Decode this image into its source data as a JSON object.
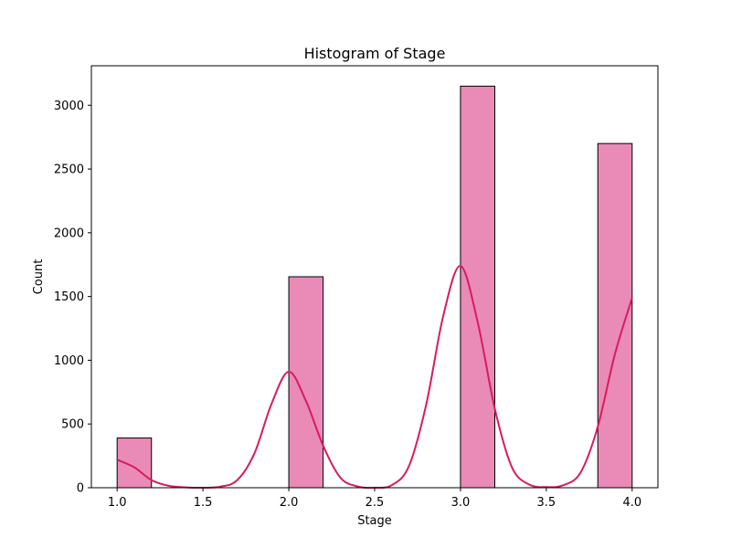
{
  "chart_data": {
    "type": "bar",
    "title": "Histogram of Stage",
    "xlabel": "Stage",
    "ylabel": "Count",
    "xlim": [
      0.85,
      4.15
    ],
    "ylim": [
      0,
      3310
    ],
    "x_ticks": [
      "1.0",
      "1.5",
      "2.0",
      "2.5",
      "3.0",
      "3.5",
      "4.0"
    ],
    "y_ticks": [
      "0",
      "500",
      "1000",
      "1500",
      "2000",
      "2500",
      "3000"
    ],
    "bar_color": "#e98bb6",
    "edge_color": "#000000",
    "kde_color": "#d81b60",
    "bins": [
      {
        "start": 1.0,
        "end": 1.2,
        "count": 390
      },
      {
        "start": 1.2,
        "end": 1.4,
        "count": 0
      },
      {
        "start": 1.4,
        "end": 1.6,
        "count": 0
      },
      {
        "start": 1.6,
        "end": 1.8,
        "count": 0
      },
      {
        "start": 1.8,
        "end": 2.0,
        "count": 0
      },
      {
        "start": 2.0,
        "end": 2.2,
        "count": 1655
      },
      {
        "start": 2.2,
        "end": 2.4,
        "count": 0
      },
      {
        "start": 2.4,
        "end": 2.6,
        "count": 0
      },
      {
        "start": 2.6,
        "end": 2.8,
        "count": 0
      },
      {
        "start": 2.8,
        "end": 3.0,
        "count": 0
      },
      {
        "start": 3.0,
        "end": 3.2,
        "count": 3150
      },
      {
        "start": 3.2,
        "end": 3.4,
        "count": 0
      },
      {
        "start": 3.4,
        "end": 3.6,
        "count": 0
      },
      {
        "start": 3.6,
        "end": 3.8,
        "count": 0
      },
      {
        "start": 3.8,
        "end": 4.0,
        "count": 2700
      }
    ],
    "kde": {
      "x": [
        1.0,
        1.1,
        1.2,
        1.3,
        1.4,
        1.5,
        1.6,
        1.7,
        1.8,
        1.9,
        2.0,
        2.1,
        2.2,
        2.3,
        2.4,
        2.5,
        2.6,
        2.7,
        2.8,
        2.9,
        3.0,
        3.1,
        3.2,
        3.3,
        3.4,
        3.5,
        3.6,
        3.7,
        3.8,
        3.9,
        4.0
      ],
      "y": [
        220,
        160,
        60,
        15,
        3,
        0,
        8,
        60,
        270,
        660,
        910,
        680,
        330,
        80,
        10,
        0,
        20,
        170,
        650,
        1350,
        1740,
        1300,
        620,
        160,
        25,
        5,
        20,
        120,
        480,
        1050,
        1490
      ]
    }
  }
}
